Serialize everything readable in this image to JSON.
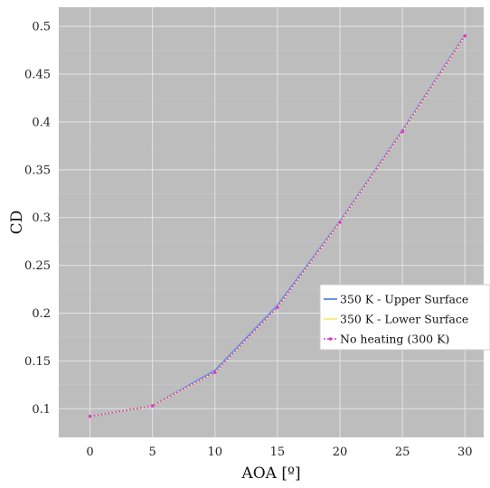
{
  "chart_data": {
    "type": "line",
    "title": "",
    "xlabel": "AOA [º]",
    "ylabel": "CD",
    "xlim": [
      -2.5,
      31.5
    ],
    "ylim": [
      0.07,
      0.52
    ],
    "xticks": [
      0,
      5,
      10,
      15,
      20,
      25,
      30
    ],
    "xtick_labels": [
      "0",
      "5",
      "10",
      "15",
      "20",
      "25",
      "30"
    ],
    "yticks": [
      0.1,
      0.15,
      0.2,
      0.25,
      0.3,
      0.35,
      0.4,
      0.45,
      0.5
    ],
    "ytick_labels": [
      "0.1",
      "0.15",
      "0.2",
      "0.25",
      "0.3",
      "0.35",
      "0.4",
      "0.45",
      "0.5"
    ],
    "grid": true,
    "legend_position": "center-right",
    "background": "#bdbdbd",
    "x": [
      0,
      5,
      10,
      15,
      20,
      25,
      30
    ],
    "series": [
      {
        "name": "350 K - Upper Surface",
        "color": "#6a8fe8",
        "style": "solid",
        "values": [
          0.092,
          0.103,
          0.14,
          0.208,
          0.296,
          0.391,
          0.491
        ]
      },
      {
        "name": "350 K - Lower Surface",
        "color": "#f5f08a",
        "style": "solid",
        "values": [
          0.092,
          0.103,
          0.138,
          0.206,
          0.295,
          0.39,
          0.49
        ]
      },
      {
        "name": "No heating (300 K)",
        "color": "#d63fc6",
        "style": "dotted",
        "values": [
          0.092,
          0.103,
          0.138,
          0.206,
          0.295,
          0.39,
          0.49
        ]
      }
    ]
  }
}
